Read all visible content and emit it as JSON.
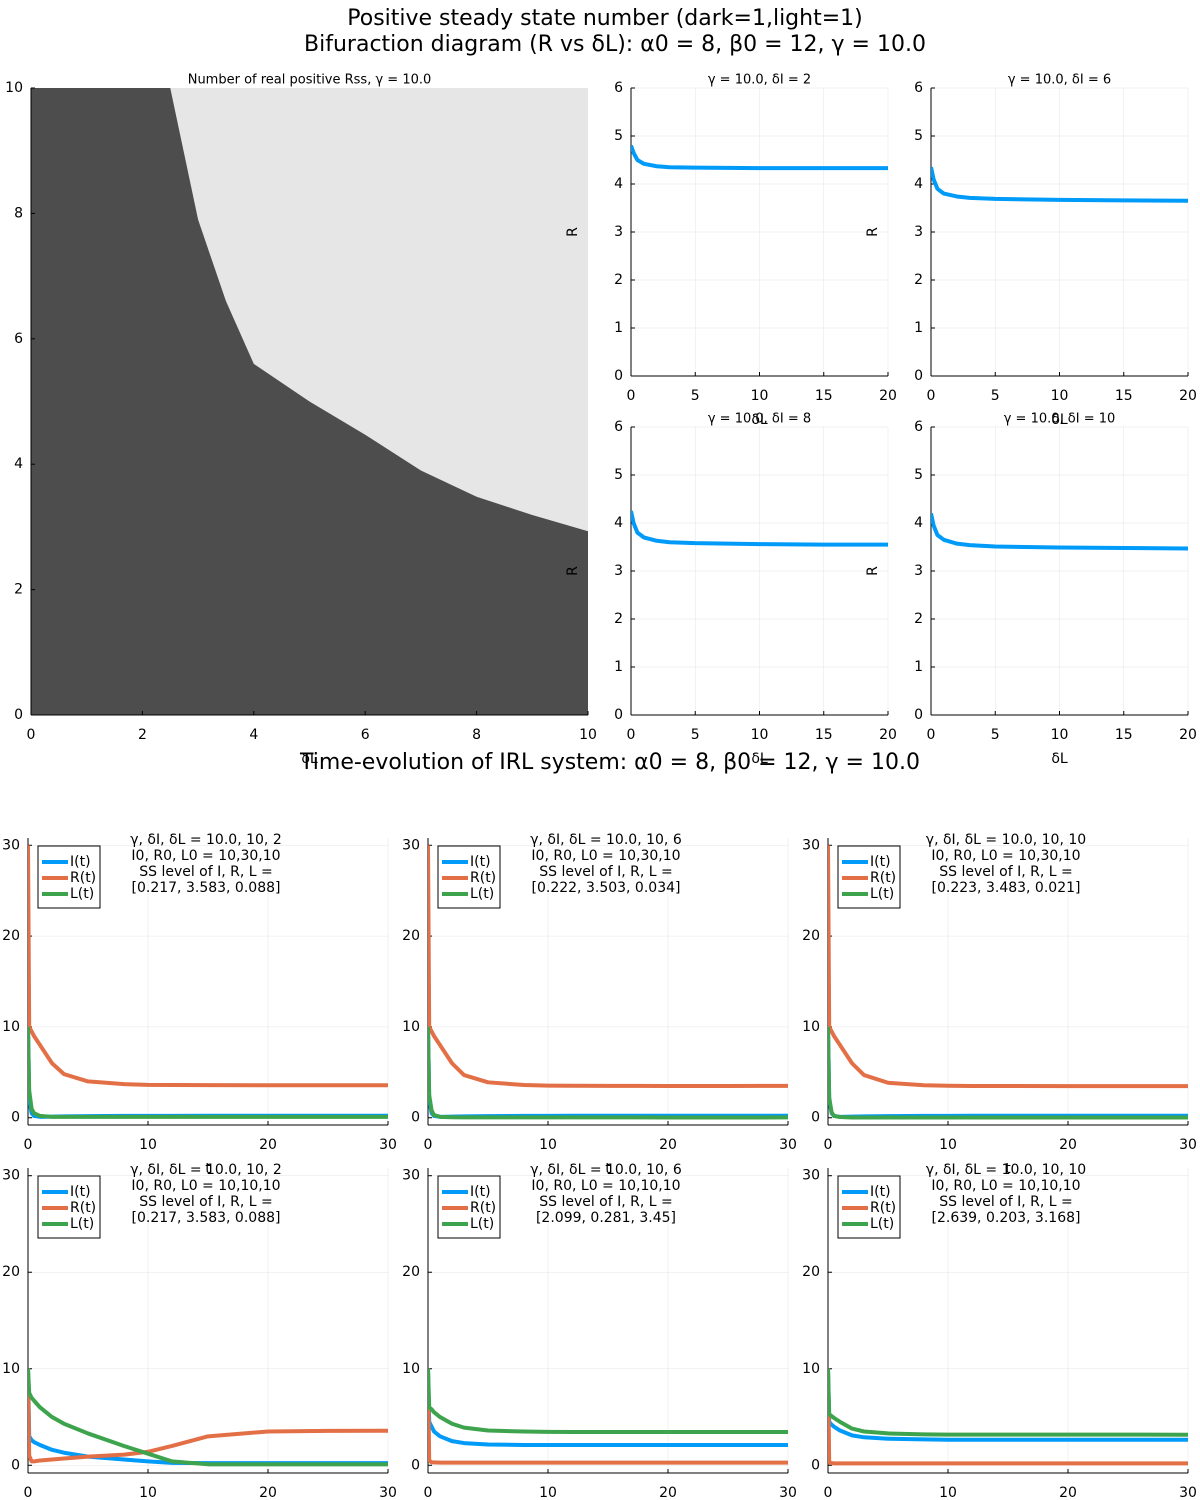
{
  "title": "Positive steady state number (dark=1,light=1)",
  "subtitle": "Bifuraction diagram (R vs δL): α0 = 8, β0 = 12, γ = 10.0",
  "section_title": "Time-evolution of IRL system: α0 = 8, β0 = 12, γ = 10.0",
  "chart_data": [
    {
      "type": "region",
      "title": "Number of real positive Rss, γ = 10.0",
      "xlabel": "δL",
      "xlim": [
        0,
        10
      ],
      "ylim": [
        0,
        10
      ],
      "xticks": [
        0,
        2,
        4,
        6,
        8,
        10
      ],
      "yticks": [
        0,
        2,
        4,
        6,
        8,
        10
      ],
      "boundary_x": [
        2.5,
        3,
        3.5,
        4,
        5,
        6,
        7,
        8,
        9,
        10
      ],
      "boundary_y": [
        10,
        7.9,
        6.6,
        5.6,
        5.0,
        4.47,
        3.9,
        3.48,
        3.19,
        2.93
      ],
      "colors": [
        "#4d4d4d",
        "#e6e6e6"
      ]
    },
    {
      "type": "line",
      "title": "γ = 10.0, δI = 2",
      "xlabel": "δL",
      "ylabel": "R",
      "x": [
        0,
        0.2,
        0.5,
        1,
        2,
        3,
        5,
        10,
        15,
        20
      ],
      "series": [
        {
          "color": "#009af9",
          "values": [
            4.8,
            4.65,
            4.5,
            4.42,
            4.37,
            4.35,
            4.34,
            4.33,
            4.33,
            4.33
          ]
        }
      ],
      "xlim": [
        0,
        20
      ],
      "ylim": [
        0,
        6
      ],
      "xticks": [
        0,
        5,
        10,
        15,
        20
      ],
      "yticks": [
        0,
        1,
        2,
        3,
        4,
        5,
        6
      ],
      "grid": true
    },
    {
      "type": "line",
      "title": "γ = 10.0, δI = 6",
      "xlabel": "δL",
      "ylabel": "R",
      "x": [
        0,
        0.2,
        0.5,
        1,
        2,
        3,
        5,
        10,
        15,
        20
      ],
      "series": [
        {
          "color": "#009af9",
          "values": [
            4.35,
            4.1,
            3.9,
            3.8,
            3.74,
            3.71,
            3.69,
            3.67,
            3.66,
            3.65
          ]
        }
      ],
      "xlim": [
        0,
        20
      ],
      "ylim": [
        0,
        6
      ],
      "xticks": [
        0,
        5,
        10,
        15,
        20
      ],
      "yticks": [
        0,
        1,
        2,
        3,
        4,
        5,
        6
      ],
      "grid": true
    },
    {
      "type": "line",
      "title": "γ = 10.0, δI = 8",
      "xlabel": "δL",
      "ylabel": "R",
      "x": [
        0,
        0.2,
        0.5,
        1,
        2,
        3,
        5,
        10,
        15,
        20
      ],
      "series": [
        {
          "color": "#009af9",
          "values": [
            4.25,
            4.0,
            3.8,
            3.7,
            3.63,
            3.6,
            3.58,
            3.56,
            3.55,
            3.55
          ]
        }
      ],
      "xlim": [
        0,
        20
      ],
      "ylim": [
        0,
        6
      ],
      "xticks": [
        0,
        5,
        10,
        15,
        20
      ],
      "yticks": [
        0,
        1,
        2,
        3,
        4,
        5,
        6
      ],
      "grid": true
    },
    {
      "type": "line",
      "title": "γ = 10.0, δI = 10",
      "xlabel": "δL",
      "ylabel": "R",
      "x": [
        0,
        0.2,
        0.5,
        1,
        2,
        3,
        5,
        10,
        15,
        20
      ],
      "series": [
        {
          "color": "#009af9",
          "values": [
            4.2,
            3.95,
            3.75,
            3.65,
            3.57,
            3.54,
            3.51,
            3.49,
            3.48,
            3.47
          ]
        }
      ],
      "xlim": [
        0,
        20
      ],
      "ylim": [
        0,
        6
      ],
      "xticks": [
        0,
        5,
        10,
        15,
        20
      ],
      "yticks": [
        0,
        1,
        2,
        3,
        4,
        5,
        6
      ],
      "grid": true
    },
    {
      "type": "line",
      "title_lines": [
        "γ, δI, δL = 10.0, 10, 2",
        "I0, R0, L0 = 10,30,10",
        "SS level of I, R, L =",
        "[0.217, 3.583, 0.088]"
      ],
      "xlabel": "t",
      "x": [
        0,
        0.1,
        0.3,
        0.5,
        1,
        2,
        3,
        5,
        8,
        10,
        12,
        15,
        20,
        25,
        30
      ],
      "series": [
        {
          "name": "I(t)",
          "color": "#009af9",
          "values": [
            10,
            2,
            0.5,
            0.2,
            0.1,
            0.12,
            0.15,
            0.18,
            0.2,
            0.21,
            0.21,
            0.22,
            0.22,
            0.22,
            0.217
          ]
        },
        {
          "name": "R(t)",
          "color": "#e26f46",
          "values": [
            30,
            10,
            9.5,
            9,
            8,
            6,
            4.8,
            4,
            3.7,
            3.62,
            3.6,
            3.59,
            3.58,
            3.58,
            3.583
          ]
        },
        {
          "name": "L(t)",
          "color": "#3da44d",
          "values": [
            10,
            3,
            1,
            0.5,
            0.2,
            0.1,
            0.09,
            0.09,
            0.09,
            0.09,
            0.09,
            0.09,
            0.09,
            0.09,
            0.088
          ]
        }
      ],
      "xlim": [
        0,
        30
      ],
      "ylim": [
        -0.8,
        30.8
      ],
      "xticks": [
        0,
        10,
        20,
        30
      ],
      "yticks": [
        0,
        10,
        20,
        30
      ],
      "grid": true,
      "legend": "top-left"
    },
    {
      "type": "line",
      "title_lines": [
        "γ, δI, δL = 10.0, 10, 6",
        "I0, R0, L0 = 10,30,10",
        "SS level of I, R, L =",
        "[0.222, 3.503, 0.034]"
      ],
      "xlabel": "t",
      "x": [
        0,
        0.1,
        0.3,
        0.5,
        1,
        2,
        3,
        5,
        8,
        10,
        12,
        15,
        20,
        25,
        30
      ],
      "series": [
        {
          "name": "I(t)",
          "color": "#009af9",
          "values": [
            10,
            2,
            0.5,
            0.2,
            0.1,
            0.12,
            0.15,
            0.18,
            0.2,
            0.21,
            0.22,
            0.22,
            0.22,
            0.22,
            0.222
          ]
        },
        {
          "name": "R(t)",
          "color": "#e26f46",
          "values": [
            30,
            10,
            9.5,
            9,
            8,
            6,
            4.7,
            3.9,
            3.6,
            3.54,
            3.52,
            3.51,
            3.5,
            3.5,
            3.503
          ]
        },
        {
          "name": "L(t)",
          "color": "#3da44d",
          "values": [
            10,
            2.5,
            0.8,
            0.3,
            0.1,
            0.05,
            0.04,
            0.04,
            0.04,
            0.04,
            0.04,
            0.04,
            0.03,
            0.03,
            0.034
          ]
        }
      ],
      "xlim": [
        0,
        30
      ],
      "ylim": [
        -0.8,
        30.8
      ],
      "xticks": [
        0,
        10,
        20,
        30
      ],
      "yticks": [
        0,
        10,
        20,
        30
      ],
      "grid": true,
      "legend": "top-left"
    },
    {
      "type": "line",
      "title_lines": [
        "γ, δI, δL = 10.0, 10, 10",
        "I0, R0, L0 = 10,30,10",
        "SS level of I, R, L =",
        "[0.223, 3.483, 0.021]"
      ],
      "xlabel": "t",
      "x": [
        0,
        0.1,
        0.3,
        0.5,
        1,
        2,
        3,
        5,
        8,
        10,
        12,
        15,
        20,
        25,
        30
      ],
      "series": [
        {
          "name": "I(t)",
          "color": "#009af9",
          "values": [
            10,
            2,
            0.5,
            0.2,
            0.1,
            0.12,
            0.15,
            0.18,
            0.2,
            0.21,
            0.22,
            0.22,
            0.22,
            0.22,
            0.223
          ]
        },
        {
          "name": "R(t)",
          "color": "#e26f46",
          "values": [
            30,
            10,
            9.5,
            9,
            8,
            6,
            4.7,
            3.85,
            3.58,
            3.52,
            3.5,
            3.49,
            3.48,
            3.48,
            3.483
          ]
        },
        {
          "name": "L(t)",
          "color": "#3da44d",
          "values": [
            10,
            2.2,
            0.6,
            0.2,
            0.08,
            0.03,
            0.02,
            0.02,
            0.02,
            0.02,
            0.02,
            0.02,
            0.02,
            0.02,
            0.021
          ]
        }
      ],
      "xlim": [
        0,
        30
      ],
      "ylim": [
        -0.8,
        30.8
      ],
      "xticks": [
        0,
        10,
        20,
        30
      ],
      "yticks": [
        0,
        10,
        20,
        30
      ],
      "grid": true,
      "legend": "top-left"
    },
    {
      "type": "line",
      "title_lines": [
        "γ, δI, δL = 10.0, 10, 2",
        "I0, R0, L0 = 10,10,10",
        "SS level of I, R, L =",
        "[0.217, 3.583, 0.088]"
      ],
      "xlabel": "t",
      "x": [
        0,
        0.1,
        0.3,
        0.5,
        1,
        2,
        3,
        5,
        8,
        10,
        12,
        15,
        20,
        25,
        30
      ],
      "series": [
        {
          "name": "I(t)",
          "color": "#009af9",
          "values": [
            10,
            3,
            2.6,
            2.4,
            2.1,
            1.6,
            1.3,
            0.9,
            0.6,
            0.4,
            0.25,
            0.22,
            0.22,
            0.22,
            0.217
          ]
        },
        {
          "name": "R(t)",
          "color": "#e26f46",
          "values": [
            10,
            1,
            0.4,
            0.4,
            0.5,
            0.6,
            0.7,
            0.9,
            1.1,
            1.4,
            2.0,
            3.0,
            3.5,
            3.57,
            3.583
          ]
        },
        {
          "name": "L(t)",
          "color": "#3da44d",
          "values": [
            10,
            7.5,
            7,
            6.7,
            6,
            5,
            4.3,
            3.3,
            2,
            1.2,
            0.4,
            0.1,
            0.09,
            0.088,
            0.088
          ]
        }
      ],
      "xlim": [
        0,
        30
      ],
      "ylim": [
        -0.8,
        30.8
      ],
      "xticks": [
        0,
        10,
        20,
        30
      ],
      "yticks": [
        0,
        10,
        20,
        30
      ],
      "grid": true,
      "legend": "top-left"
    },
    {
      "type": "line",
      "title_lines": [
        "γ, δI, δL = 10.0, 10, 6",
        "I0, R0, L0 = 10,10,10",
        "SS level of I, R, L =",
        "[2.099, 0.281, 3.45]"
      ],
      "xlabel": "t",
      "x": [
        0,
        0.1,
        0.3,
        0.5,
        1,
        2,
        3,
        5,
        8,
        10,
        12,
        15,
        20,
        25,
        30
      ],
      "series": [
        {
          "name": "I(t)",
          "color": "#009af9",
          "values": [
            10,
            4.5,
            4,
            3.5,
            3,
            2.5,
            2.3,
            2.15,
            2.1,
            2.1,
            2.1,
            2.1,
            2.1,
            2.1,
            2.099
          ]
        },
        {
          "name": "R(t)",
          "color": "#e26f46",
          "values": [
            10,
            0.5,
            0.3,
            0.3,
            0.28,
            0.28,
            0.28,
            0.28,
            0.28,
            0.28,
            0.28,
            0.28,
            0.28,
            0.28,
            0.281
          ]
        },
        {
          "name": "L(t)",
          "color": "#3da44d",
          "values": [
            10,
            6,
            5.8,
            5.5,
            5,
            4.3,
            3.9,
            3.6,
            3.5,
            3.46,
            3.45,
            3.45,
            3.45,
            3.45,
            3.45
          ]
        }
      ],
      "xlim": [
        0,
        30
      ],
      "ylim": [
        -0.8,
        30.8
      ],
      "xticks": [
        0,
        10,
        20,
        30
      ],
      "yticks": [
        0,
        10,
        20,
        30
      ],
      "grid": true,
      "legend": "top-left"
    },
    {
      "type": "line",
      "title_lines": [
        "γ, δI, δL = 10.0, 10, 10",
        "I0, R0, L0 = 10,10,10",
        "SS level of I, R, L =",
        "[2.639, 0.203, 3.168]"
      ],
      "xlabel": "t",
      "x": [
        0,
        0.1,
        0.3,
        0.5,
        1,
        2,
        3,
        5,
        8,
        10,
        12,
        15,
        20,
        25,
        30
      ],
      "series": [
        {
          "name": "I(t)",
          "color": "#009af9",
          "values": [
            10,
            4.5,
            4.2,
            4,
            3.6,
            3.1,
            2.9,
            2.75,
            2.68,
            2.65,
            2.64,
            2.64,
            2.64,
            2.64,
            2.639
          ]
        },
        {
          "name": "R(t)",
          "color": "#e26f46",
          "values": [
            10,
            0.3,
            0.22,
            0.2,
            0.2,
            0.2,
            0.2,
            0.2,
            0.2,
            0.2,
            0.2,
            0.2,
            0.2,
            0.2,
            0.203
          ]
        },
        {
          "name": "L(t)",
          "color": "#3da44d",
          "values": [
            10,
            5.3,
            5.1,
            4.9,
            4.5,
            3.8,
            3.5,
            3.3,
            3.2,
            3.18,
            3.17,
            3.17,
            3.17,
            3.17,
            3.168
          ]
        }
      ],
      "xlim": [
        0,
        30
      ],
      "ylim": [
        -0.8,
        30.8
      ],
      "xticks": [
        0,
        10,
        20,
        30
      ],
      "yticks": [
        0,
        10,
        20,
        30
      ],
      "grid": true,
      "legend": "top-left"
    }
  ]
}
